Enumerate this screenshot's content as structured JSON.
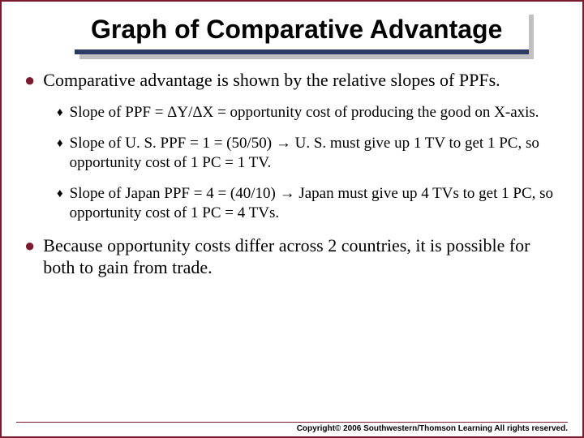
{
  "colors": {
    "accent_maroon": "#7a1a2e",
    "title_underline": "#2e3a66",
    "shadow": "#c0c0c0",
    "background": "#ffffff",
    "text": "#000000"
  },
  "title": "Graph of Comparative Advantage",
  "bullets": [
    {
      "text": "Comparative advantage is shown by the relative slopes of PPFs.",
      "sub": [
        {
          "text": "Slope of PPF = ΔY/ΔX = opportunity cost of producing the good on X-axis."
        },
        {
          "text": "Slope of U. S. PPF = 1 = (50/50) → U. S. must give up 1 TV to get 1 PC, so opportunity cost of 1 PC = 1 TV."
        },
        {
          "text": "Slope of Japan PPF = 4 = (40/10) → Japan must give up 4 TVs to get 1 PC, so opportunity cost of 1 PC = 4 TVs."
        }
      ]
    },
    {
      "text": "Because opportunity costs differ across 2 countries, it is possible for both to gain from trade.",
      "sub": []
    }
  ],
  "footer": "Copyright© 2006 Southwestern/Thomson Learning All rights reserved."
}
